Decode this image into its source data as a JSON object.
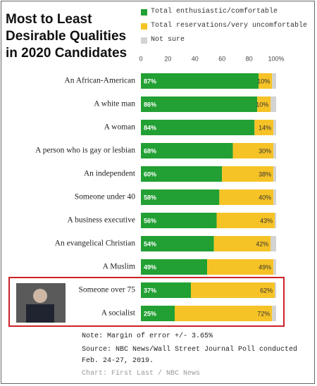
{
  "chart_data": {
    "type": "stacked-barh",
    "title": "Most to Least Desirable Qualities in 2020 Candidates",
    "categories": [
      "An African-American",
      "A white man",
      "A woman",
      "A person who is gay or lesbian",
      "An independent",
      "Someone under 40",
      "A business executive",
      "An evangelical Christian",
      "A Muslim",
      "Someone over 75",
      "A socialist"
    ],
    "series": [
      {
        "name": "Total enthusiastic/comfortable",
        "color": "#22a033",
        "values": [
          87,
          86,
          84,
          68,
          60,
          58,
          56,
          54,
          49,
          37,
          25
        ],
        "value_labels": [
          "87%",
          "86%",
          "84%",
          "68%",
          "60%",
          "58%",
          "56%",
          "54%",
          "49%",
          "37%",
          "25%"
        ]
      },
      {
        "name": "Total reservations/very uncomfortable",
        "color": "#f6c326",
        "values": [
          10,
          10,
          14,
          30,
          38,
          40,
          43,
          42,
          49,
          62,
          72
        ],
        "value_labels": [
          "10%",
          "10%",
          "14%",
          "30%",
          "38%",
          "40%",
          "43%",
          "42%",
          "49%",
          "62%",
          "72%"
        ]
      },
      {
        "name": "Not sure",
        "color": "#d3d3d3",
        "values": [
          3,
          4,
          2,
          2,
          2,
          2,
          1,
          4,
          2,
          1,
          3
        ]
      }
    ],
    "xlim": [
      0,
      100
    ],
    "xticks": [
      0,
      20,
      40,
      60,
      80,
      {
        "value": 100,
        "label": "100%"
      }
    ],
    "grid": false,
    "highlight_color": "#cc2229",
    "notes": [
      "Note: Margin of error +/- 3.65%",
      "Source: NBC News/Wall Street Journal Poll conducted Feb. 24-27, 2019.",
      "Chart: First Last / NBC News"
    ]
  }
}
